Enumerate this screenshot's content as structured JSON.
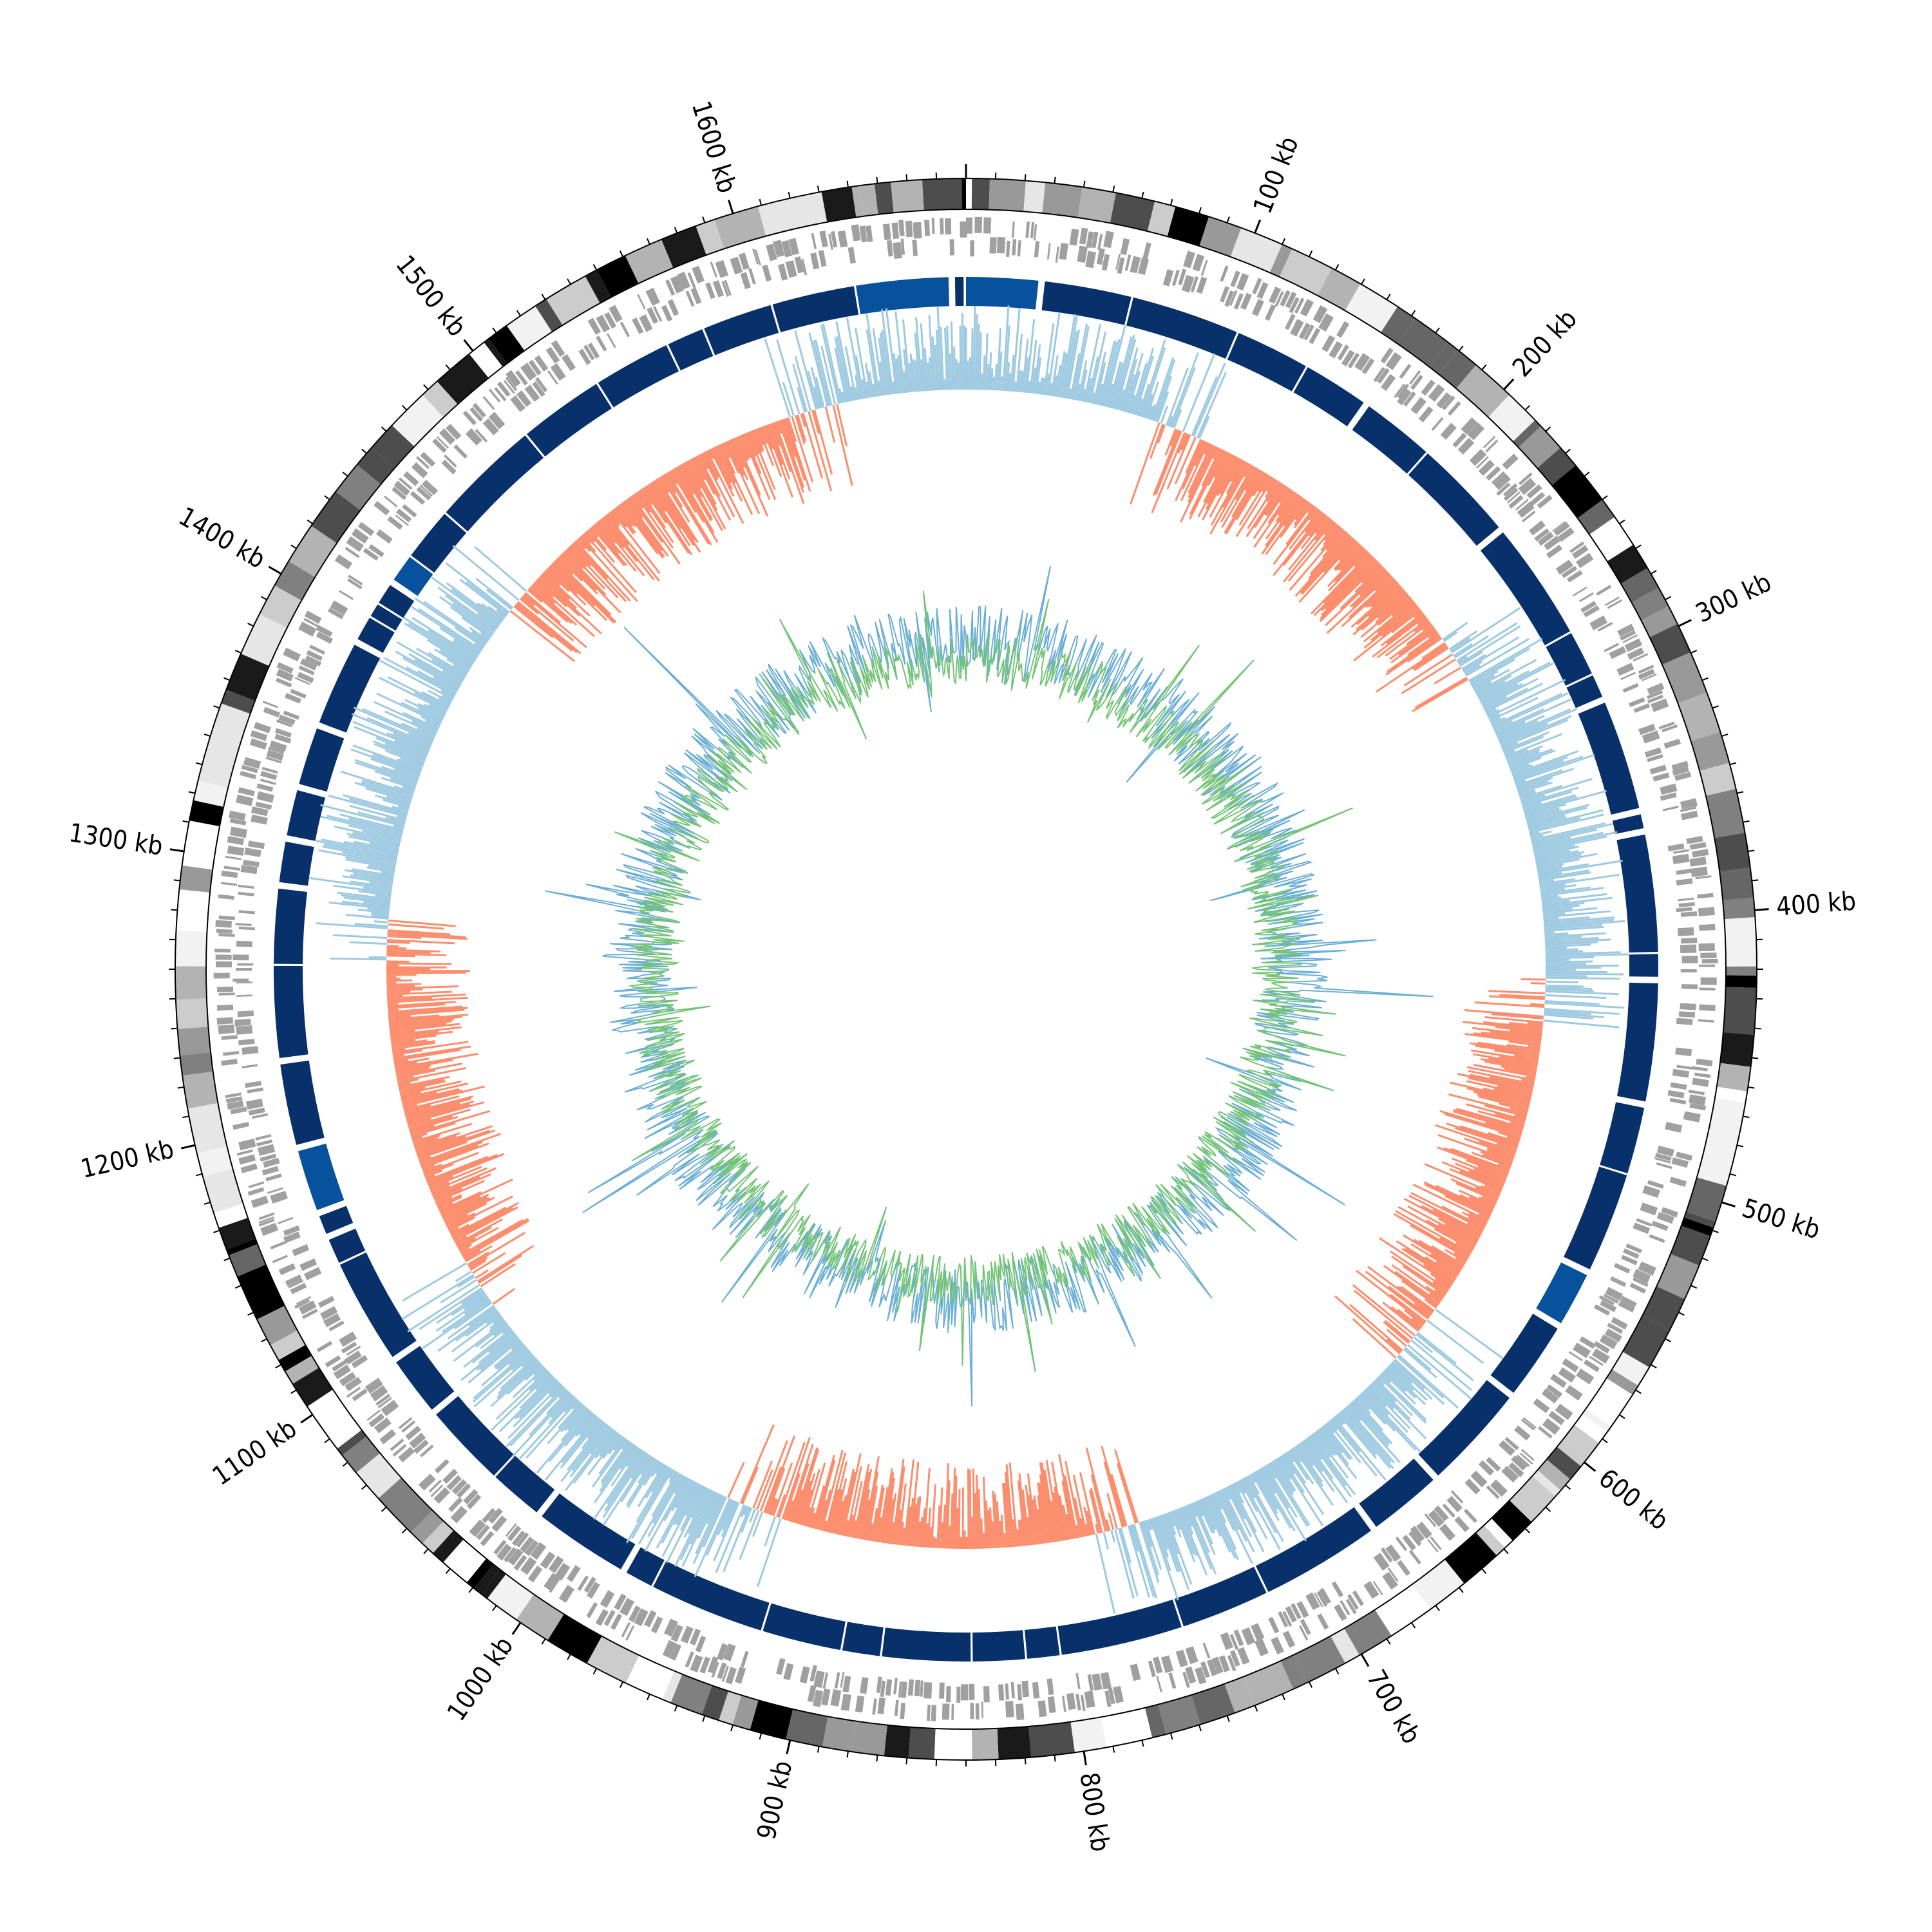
{
  "chart_data": {
    "type": "circos",
    "genome_length_kb": 1680,
    "major_tick_labels": [
      "100 kb",
      "200 kb",
      "300 kb",
      "400 kb",
      "500 kb",
      "600 kb",
      "700 kb",
      "800 kb",
      "900 kb",
      "1000 kb",
      "1100 kb",
      "1200 kb",
      "1300 kb",
      "1400 kb",
      "1500 kb",
      "1600 kb"
    ],
    "major_tick_positions_kb": [
      100,
      200,
      300,
      400,
      500,
      600,
      700,
      800,
      900,
      1000,
      1100,
      1200,
      1300,
      1400,
      1500,
      1600
    ],
    "tracks": [
      {
        "name": "ideogram bands",
        "color": "#808080"
      },
      {
        "name": "genes (forward/reverse strands)",
        "color": "#a0a0a0"
      },
      {
        "name": "syntenic blocks",
        "color": "#08306b",
        "alt_color": "#08519c"
      },
      {
        "name": "skew outward",
        "color": "#9ecae1"
      },
      {
        "name": "skew inward",
        "color": "#fc8d6d"
      },
      {
        "name": "coverage outer",
        "color": "#6baed6"
      },
      {
        "name": "coverage inner",
        "color": "#74c476"
      }
    ],
    "grid": false,
    "legend": "none",
    "title": ""
  }
}
